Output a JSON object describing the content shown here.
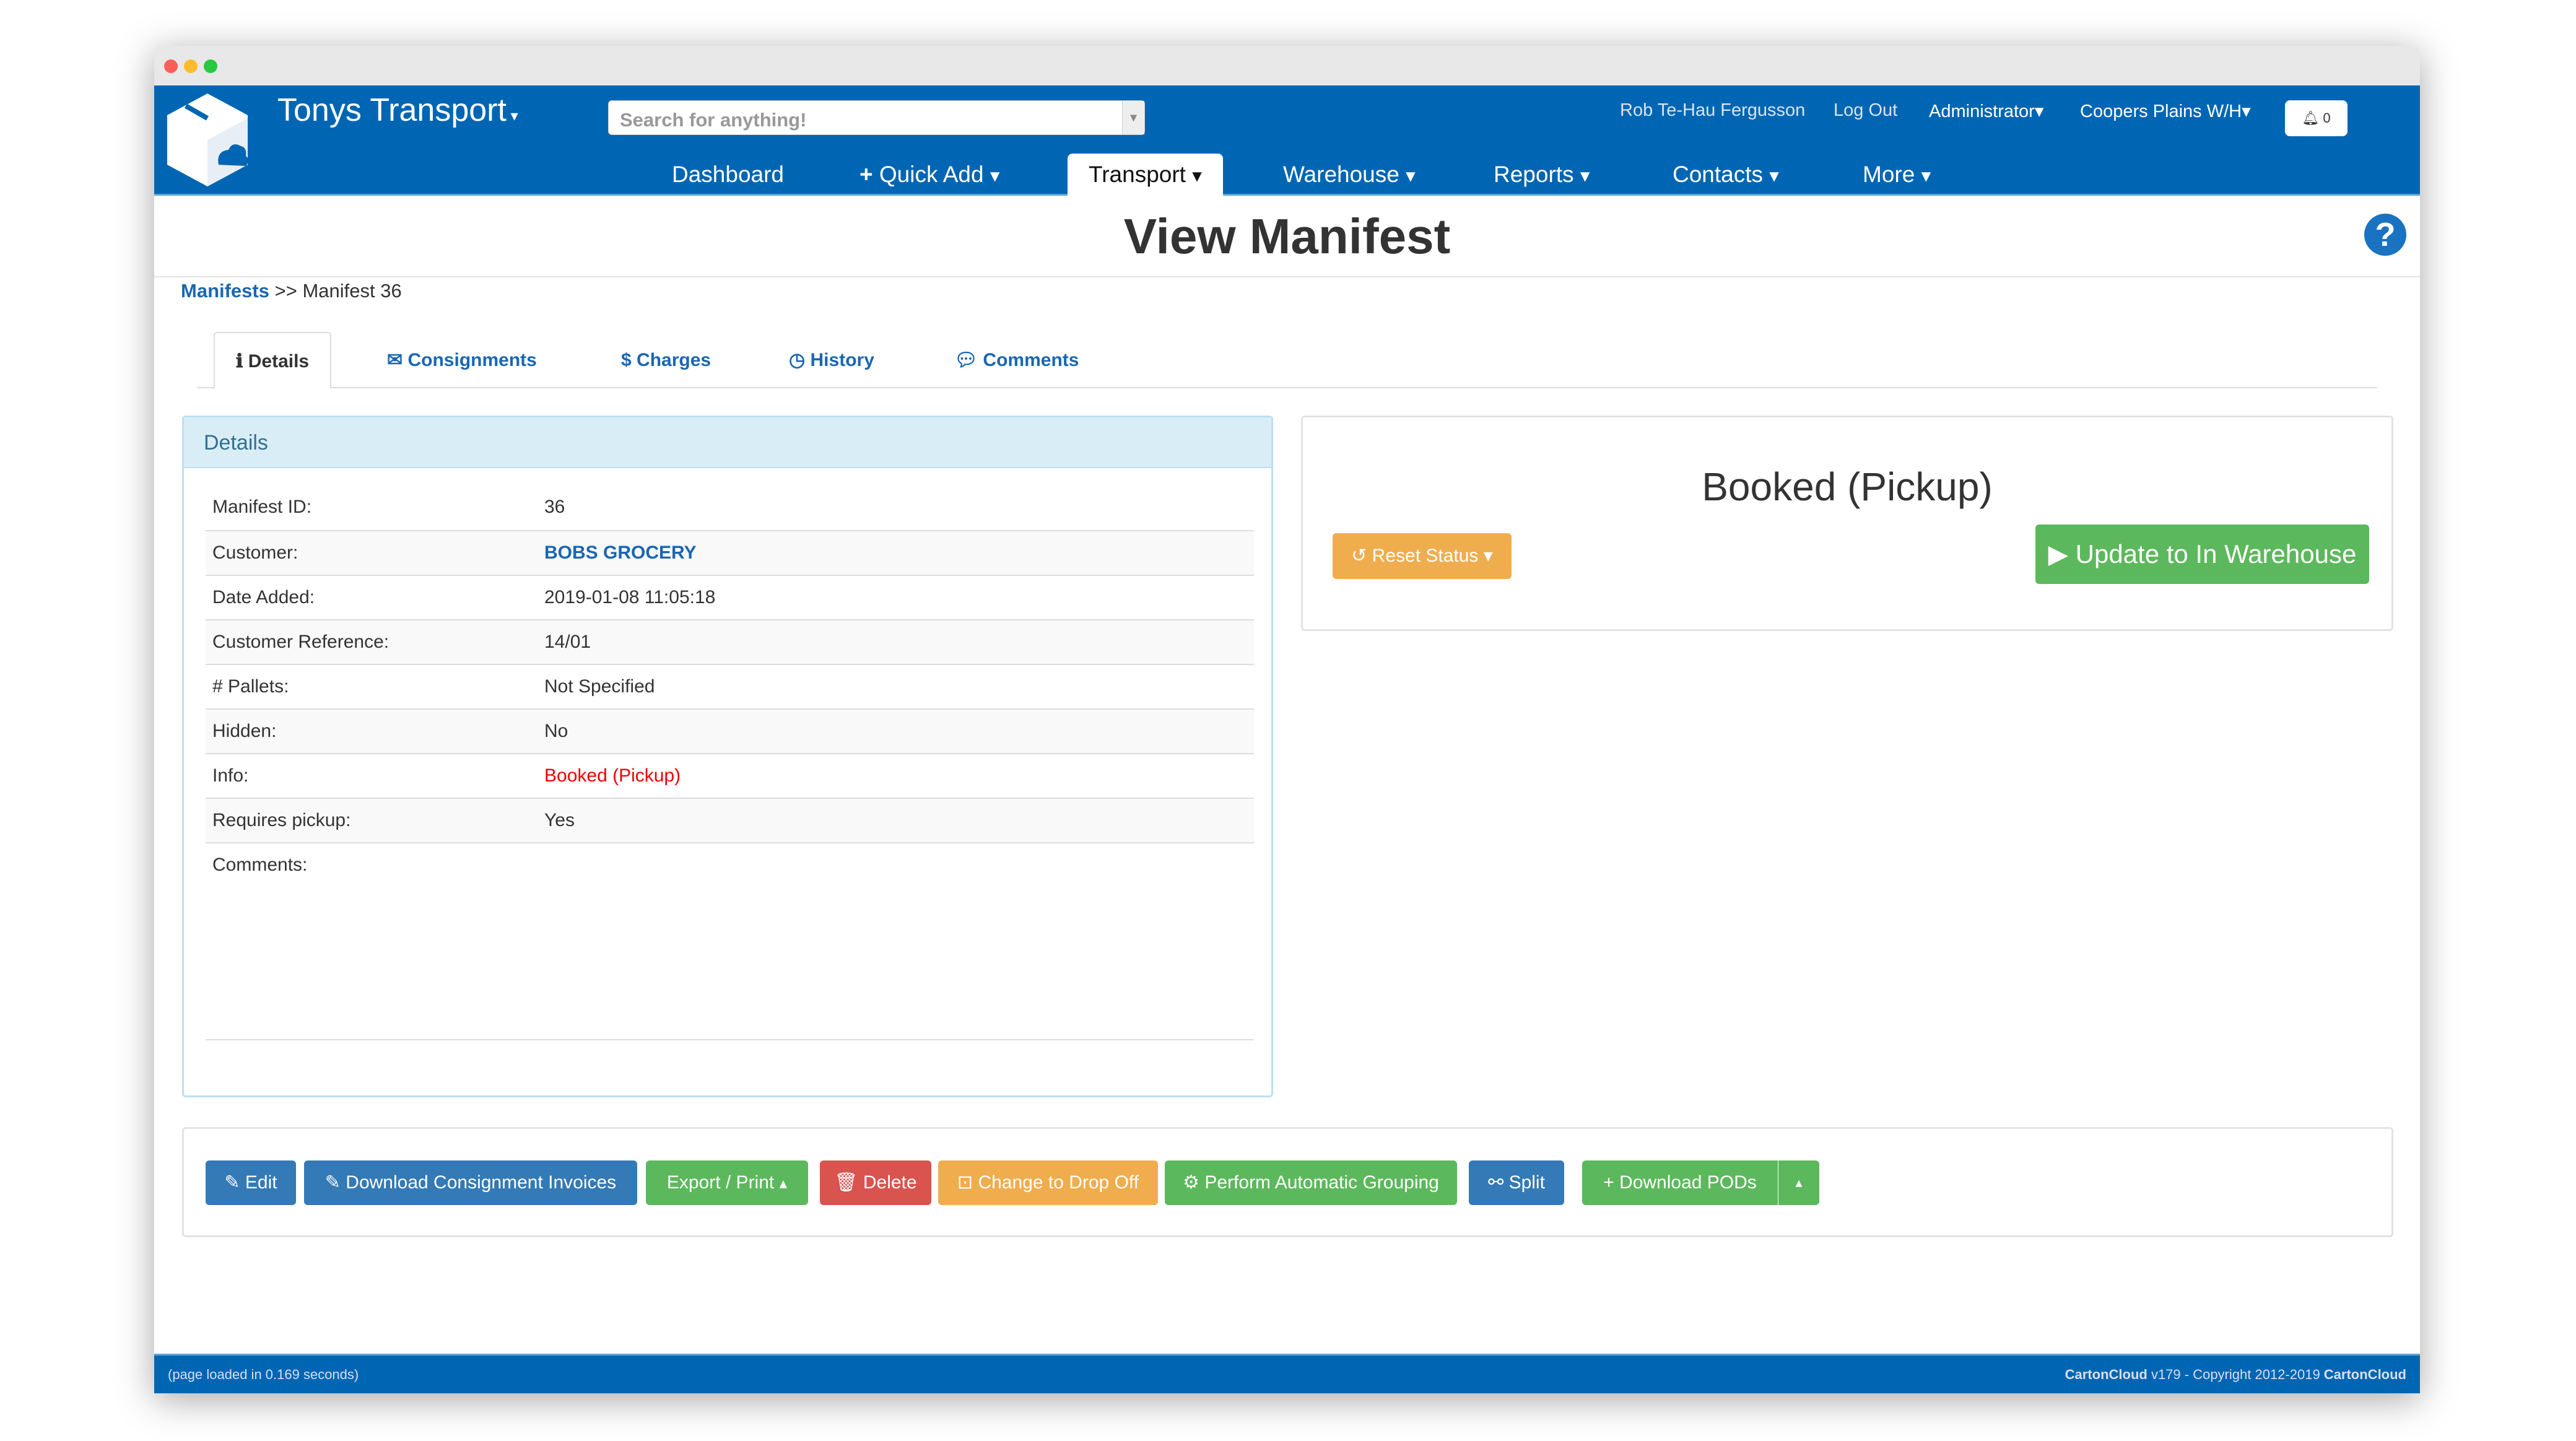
{
  "app": {
    "brand": "Tonys Transport",
    "search_placeholder": "Search for anything!"
  },
  "topbar": {
    "user": "Rob Te-Hau Fergusson",
    "logout": "Log Out",
    "role": "Administrator",
    "warehouse": "Coopers Plains W/H",
    "notifications": "0"
  },
  "nav": [
    {
      "label": "Dashboard"
    },
    {
      "label": "Quick Add"
    },
    {
      "label": "Transport"
    },
    {
      "label": "Warehouse"
    },
    {
      "label": "Reports"
    },
    {
      "label": "Contacts"
    },
    {
      "label": "More"
    }
  ],
  "page": {
    "title": "View Manifest",
    "breadcrumb_link": "Manifests",
    "breadcrumb_sep": ">>",
    "breadcrumb_current": "Manifest 36"
  },
  "tabs": [
    {
      "label": "Details",
      "icon": "info-icon"
    },
    {
      "label": "Consignments",
      "icon": "envelope-icon"
    },
    {
      "label": "Charges",
      "icon": "dollar-icon"
    },
    {
      "label": "History",
      "icon": "clock-icon"
    },
    {
      "label": "Comments",
      "icon": "comment-icon"
    }
  ],
  "details": {
    "heading": "Details",
    "rows": [
      {
        "label": "Manifest ID:",
        "value": "36"
      },
      {
        "label": "Customer:",
        "value": "BOBS GROCERY"
      },
      {
        "label": "Date Added:",
        "value": "2019-01-08 11:05:18"
      },
      {
        "label": "Customer Reference:",
        "value": "14/01"
      },
      {
        "label": "# Pallets:",
        "value": "Not Specified"
      },
      {
        "label": "Hidden:",
        "value": "No"
      },
      {
        "label": "Info:",
        "value": "Booked (Pickup)"
      },
      {
        "label": "Requires pickup:",
        "value": "Yes"
      },
      {
        "label": "Comments:",
        "value": ""
      }
    ]
  },
  "status": {
    "text": "Booked (Pickup)",
    "reset": "Reset Status",
    "update": "Update to In Warehouse"
  },
  "actions": {
    "edit": "Edit",
    "download_invoices": "Download Consignment Invoices",
    "export": "Export / Print",
    "delete": "Delete",
    "change": "Change to Drop Off",
    "grouping": "Perform Automatic Grouping",
    "split": "Split",
    "pods": "Download PODs"
  },
  "footer": {
    "left": "(page loaded in 0.169 seconds)",
    "brand": "CartonCloud",
    "version": " v179 - Copyright 2012-2019 ",
    "brand2": "CartonCloud"
  },
  "colors": {
    "header": "#0066b3",
    "primary": "#337ab7",
    "success": "#5cb85c",
    "danger": "#d9534f",
    "warning": "#f0ad4e"
  }
}
